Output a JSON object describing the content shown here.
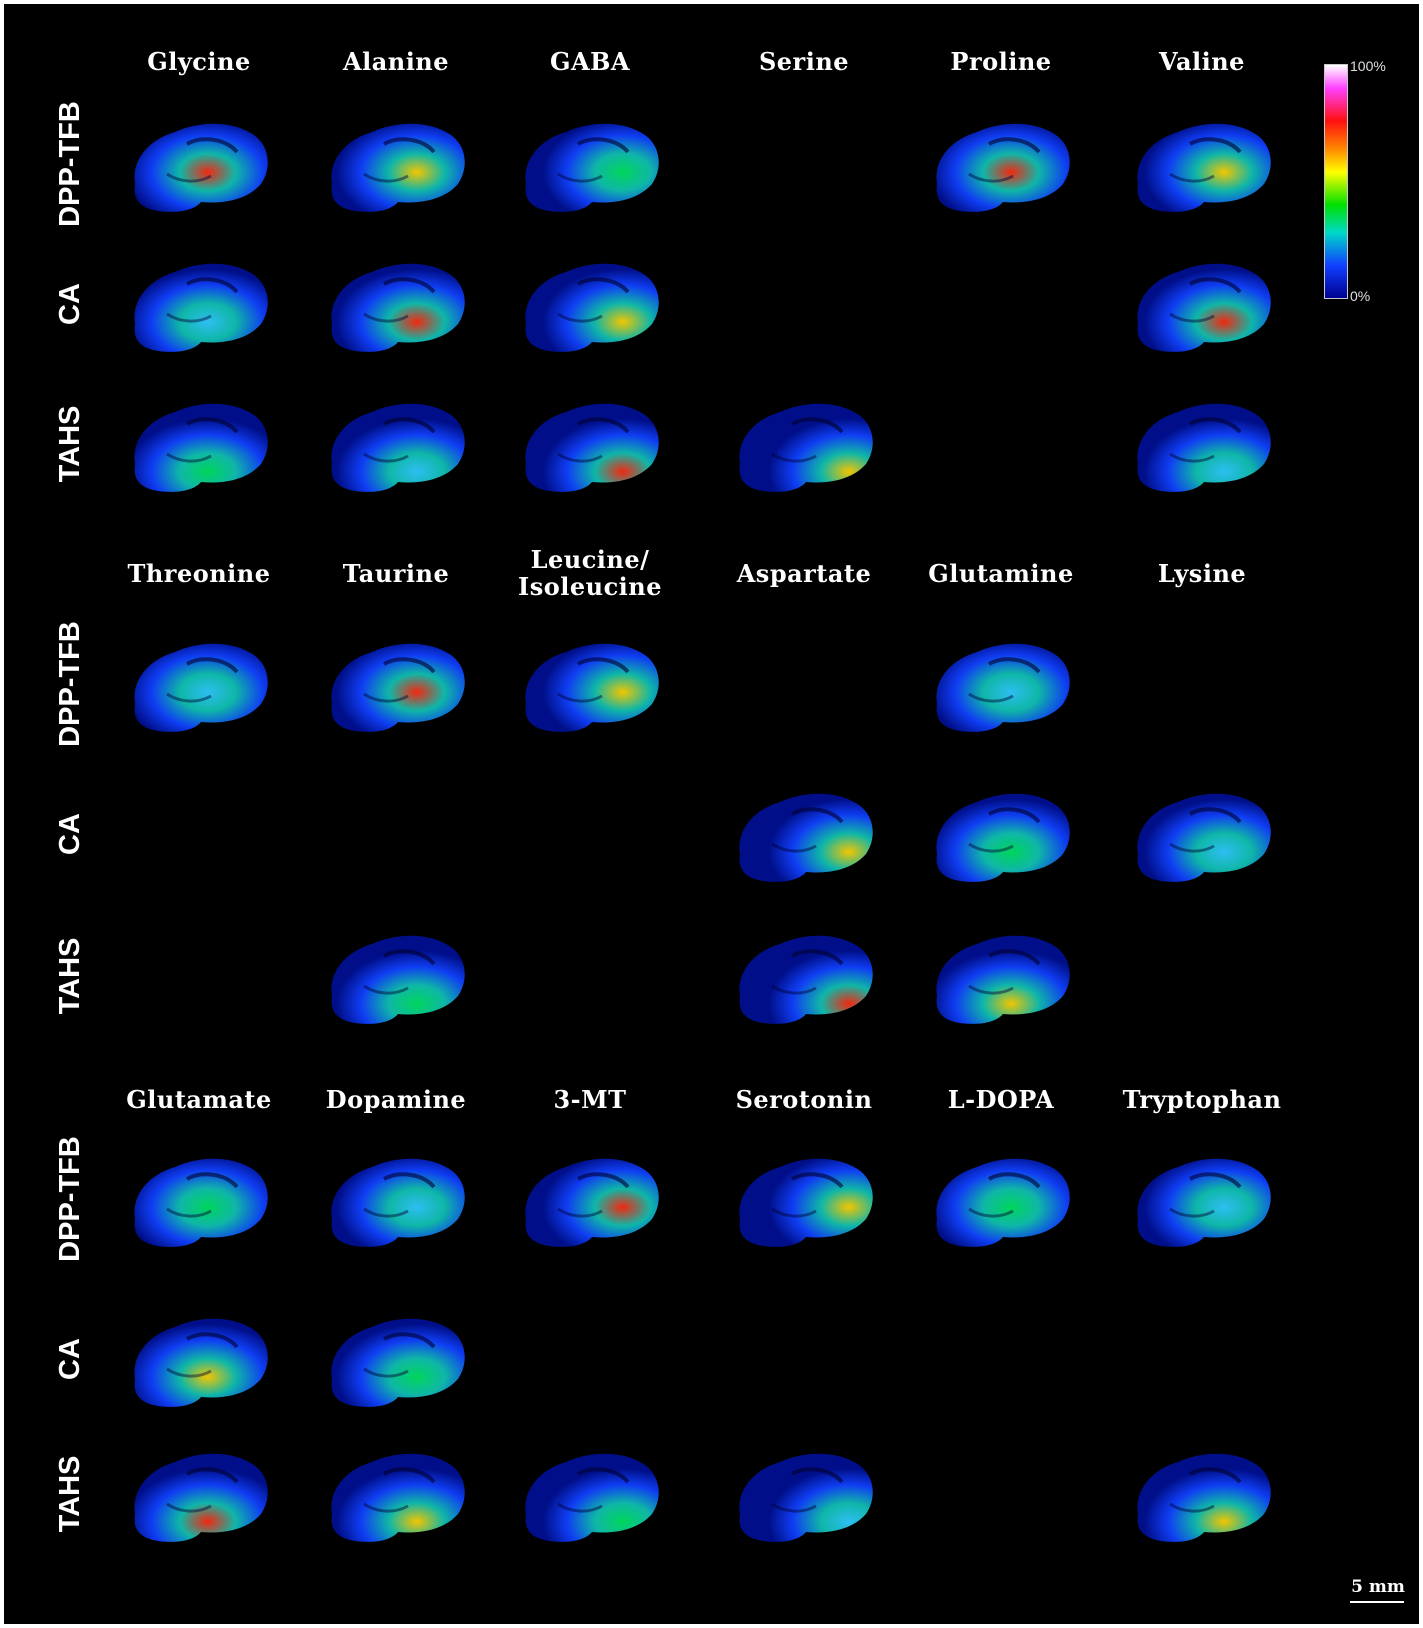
{
  "figure": {
    "colorbar": {
      "max_label": "100%",
      "min_label": "0%",
      "scale": "rainbow"
    },
    "scale_bar": {
      "label": "5 mm"
    },
    "row_labels": [
      "DPP-TFB",
      "CA",
      "TAHS"
    ],
    "sections": [
      {
        "columns": [
          "Glycine",
          "Alanine",
          "GABA",
          "Serine",
          "Proline",
          "Valine"
        ],
        "present": [
          [
            1,
            1,
            1,
            0,
            1,
            1
          ],
          [
            1,
            1,
            1,
            0,
            0,
            1
          ],
          [
            1,
            1,
            1,
            1,
            0,
            1
          ]
        ]
      },
      {
        "columns": [
          "Threonine",
          "Taurine",
          "Leucine/\nIsoleucine",
          "Aspartate",
          "Glutamine",
          "Lysine"
        ],
        "present": [
          [
            1,
            1,
            1,
            0,
            1,
            0
          ],
          [
            0,
            0,
            0,
            1,
            1,
            1
          ],
          [
            0,
            1,
            0,
            1,
            1,
            0
          ]
        ]
      },
      {
        "columns": [
          "Glutamate",
          "Dopamine",
          "3-MT",
          "Serotonin",
          "L-DOPA",
          "Tryptophan"
        ],
        "present": [
          [
            1,
            1,
            1,
            1,
            1,
            1
          ],
          [
            1,
            1,
            0,
            0,
            0,
            0
          ],
          [
            1,
            1,
            1,
            1,
            0,
            1
          ]
        ]
      }
    ]
  }
}
